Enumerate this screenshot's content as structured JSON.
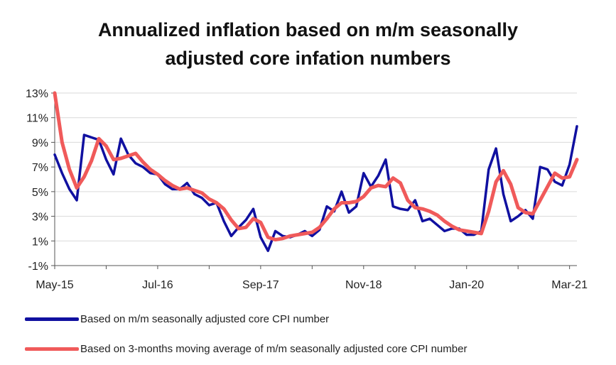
{
  "chart_data": {
    "type": "line",
    "title_line1": "Annualized inflation based on m/m seasonally",
    "title_line2": "adjusted core infation numbers",
    "xlabel": "",
    "ylabel": "",
    "ylim": [
      -1,
      13
    ],
    "y_ticks": [
      -1,
      1,
      3,
      5,
      7,
      9,
      11,
      13
    ],
    "y_tick_labels": [
      "-1%",
      "1%",
      "3%",
      "5%",
      "7%",
      "9%",
      "11%",
      "13%"
    ],
    "x_tick_labels": [
      "May-15",
      "Jul-16",
      "Sep-17",
      "Nov-18",
      "Jan-20",
      "Mar-21"
    ],
    "x_tick_index": [
      0,
      14,
      28,
      42,
      56,
      70
    ],
    "grid": "horizontal",
    "legend_position": "bottom",
    "series": [
      {
        "name": "Based on m/m seasonally adjusted core CPI number",
        "color": "#1010a0",
        "values": [
          8.0,
          6.5,
          5.2,
          4.3,
          9.6,
          9.4,
          9.2,
          7.6,
          6.4,
          9.3,
          8.0,
          7.3,
          7.0,
          6.5,
          6.4,
          5.6,
          5.2,
          5.2,
          5.7,
          4.8,
          4.5,
          3.9,
          4.1,
          2.6,
          1.4,
          2.1,
          2.7,
          3.6,
          1.3,
          0.2,
          1.8,
          1.4,
          1.3,
          1.5,
          1.8,
          1.4,
          1.9,
          3.8,
          3.4,
          5.0,
          3.3,
          3.8,
          6.5,
          5.4,
          6.3,
          7.6,
          3.8,
          3.6,
          3.5,
          4.3,
          2.6,
          2.8,
          2.3,
          1.8,
          2.0,
          2.0,
          1.5,
          1.5,
          1.8,
          6.8,
          8.5,
          4.8,
          2.6,
          3.0,
          3.5,
          2.8,
          7.0,
          6.8,
          5.8,
          5.5,
          7.2,
          10.3
        ]
      },
      {
        "name": "Based on 3-months moving average of m/m seasonally adjusted core CPI number",
        "color": "#f05a5a",
        "values": [
          13.0,
          9.0,
          6.8,
          5.3,
          6.2,
          7.5,
          9.3,
          8.7,
          7.6,
          7.7,
          7.9,
          8.1,
          7.4,
          6.8,
          6.4,
          5.9,
          5.5,
          5.2,
          5.3,
          5.1,
          4.9,
          4.4,
          4.1,
          3.6,
          2.7,
          2.0,
          2.1,
          2.8,
          2.5,
          1.3,
          1.1,
          1.2,
          1.4,
          1.5,
          1.6,
          1.7,
          2.1,
          2.8,
          3.6,
          4.1,
          4.1,
          4.2,
          4.6,
          5.3,
          5.5,
          5.4,
          6.1,
          5.7,
          4.3,
          3.7,
          3.6,
          3.4,
          3.1,
          2.6,
          2.2,
          1.9,
          1.8,
          1.7,
          1.6,
          3.4,
          5.8,
          6.7,
          5.6,
          3.7,
          3.3,
          3.2,
          4.3,
          5.4,
          6.5,
          6.1,
          6.2,
          7.6
        ]
      }
    ]
  }
}
